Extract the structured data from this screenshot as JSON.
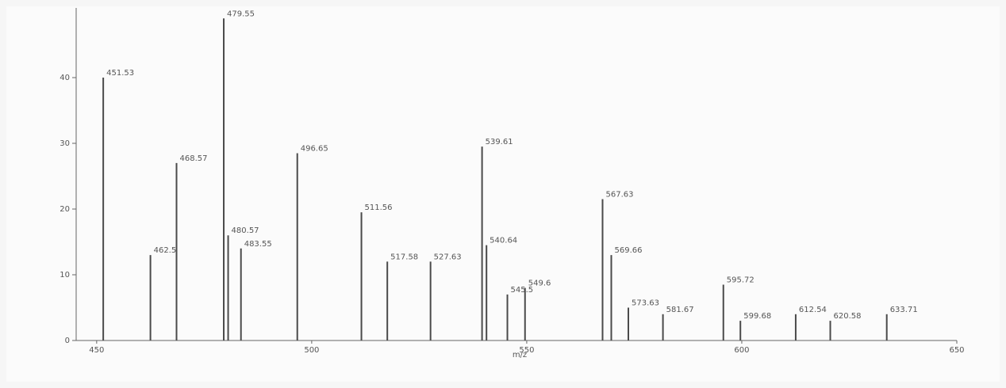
{
  "chart_data": {
    "type": "stem",
    "x_label": "m/z",
    "x": [
      451.53,
      462.5,
      468.57,
      479.55,
      480.57,
      483.55,
      496.65,
      511.56,
      517.58,
      527.63,
      539.61,
      540.64,
      545.5,
      549.6,
      567.63,
      569.66,
      573.63,
      581.67,
      595.72,
      599.68,
      612.54,
      620.58,
      633.71
    ],
    "values": [
      40,
      13,
      27,
      49,
      16,
      14,
      28.5,
      19.5,
      12,
      12,
      29.5,
      14.5,
      7,
      8,
      21.5,
      13,
      5,
      4,
      8.5,
      3,
      4,
      3,
      4
    ],
    "color": "#4a4a4a",
    "xlim": [
      448,
      650
    ],
    "xticks": [
      450,
      500,
      550,
      600,
      650
    ],
    "ylim": [
      0,
      50
    ],
    "yticks": [
      0,
      10,
      20,
      30,
      40
    ]
  }
}
